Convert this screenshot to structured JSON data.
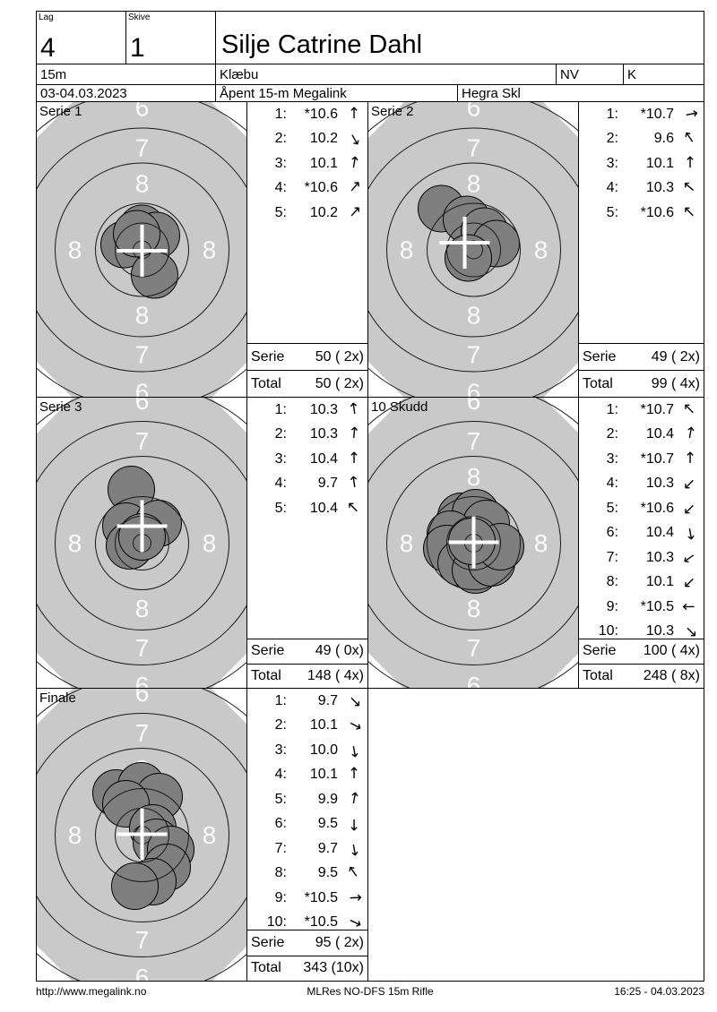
{
  "header": {
    "lag_label": "Lag",
    "lag_value": "4",
    "skive_label": "Skive",
    "skive_value": "1",
    "shooter_name": "Silje Catrine Dahl",
    "distance": "15m",
    "club": "Klæbu",
    "class_nv": "NV",
    "class_k": "K",
    "date": "03-04.03.2023",
    "event": "Åpent 15-m Megalink",
    "arena": "Hegra Skl"
  },
  "footer": {
    "url": "http://www.megalink.no",
    "program": "MLRes NO-DFS 15m Rifle",
    "printed": "16:25 - 04.03.2023"
  },
  "colors": {
    "target_bg": "#c9c9c9",
    "shot_fill": "#7f7f7f",
    "ring_line": "#1a1a1a",
    "ring_text": "#fafafa",
    "cross": "#ffffff"
  },
  "ring_numbers": [
    "6",
    "7",
    "8",
    "8",
    "8",
    "8",
    "7",
    "6"
  ],
  "series": [
    {
      "name": "Serie 1",
      "shots": [
        {
          "n": "1:",
          "v": "*10.6",
          "angle": 0
        },
        {
          "n": "2:",
          "v": "10.2",
          "angle": 150
        },
        {
          "n": "3:",
          "v": "10.1",
          "angle": 10
        },
        {
          "n": "4:",
          "v": "*10.6",
          "angle": 40
        },
        {
          "n": "5:",
          "v": "10.2",
          "angle": 42
        }
      ],
      "serie_label": "Serie",
      "serie_value": "50 ( 2x)",
      "total_label": "Total",
      "total_value": "50 ( 2x)",
      "target": {
        "cross": [
          0,
          1
        ],
        "holes": [
          [
            0,
            -24
          ],
          [
            16,
            -16
          ],
          [
            -20,
            -6
          ],
          [
            14,
            28
          ],
          [
            -6,
            -18
          ]
        ]
      }
    },
    {
      "name": "Serie 2",
      "shots": [
        {
          "n": "1:",
          "v": "*10.7",
          "angle": 80
        },
        {
          "n": "2:",
          "v": "9.6",
          "angle": 325
        },
        {
          "n": "3:",
          "v": "10.1",
          "angle": 0
        },
        {
          "n": "4:",
          "v": "10.3",
          "angle": 310
        },
        {
          "n": "5:",
          "v": "*10.6",
          "angle": 315
        }
      ],
      "serie_label": "Serie",
      "serie_value": "49 ( 2x)",
      "total_label": "Total",
      "total_value": "99 ( 4x)",
      "target": {
        "cross": [
          -10,
          -8
        ],
        "holes": [
          [
            -36,
            -46
          ],
          [
            -8,
            -34
          ],
          [
            12,
            -21
          ],
          [
            25,
            -7
          ],
          [
            -6,
            9
          ]
        ]
      }
    },
    {
      "name": "Serie 3",
      "shots": [
        {
          "n": "1:",
          "v": "10.3",
          "angle": 352
        },
        {
          "n": "2:",
          "v": "10.3",
          "angle": 5
        },
        {
          "n": "3:",
          "v": "10.4",
          "angle": 0
        },
        {
          "n": "4:",
          "v": "9.7",
          "angle": 352
        },
        {
          "n": "5:",
          "v": "10.4",
          "angle": 315
        }
      ],
      "serie_label": "Serie",
      "serie_value": "49 ( 0x)",
      "total_label": "Total",
      "total_value": "148 ( 4x)",
      "target": {
        "cross": [
          0,
          -19
        ],
        "holes": [
          [
            -12,
            -60
          ],
          [
            -18,
            -19
          ],
          [
            -14,
            3
          ],
          [
            18,
            -22
          ],
          [
            0,
            -7
          ]
        ]
      }
    },
    {
      "name": "10 Skudd",
      "shots": [
        {
          "n": "1:",
          "v": "*10.7",
          "angle": 315
        },
        {
          "n": "2:",
          "v": "10.4",
          "angle": 10
        },
        {
          "n": "3:",
          "v": "*10.7",
          "angle": 0
        },
        {
          "n": "4:",
          "v": "10.3",
          "angle": 225
        },
        {
          "n": "5:",
          "v": "*10.6",
          "angle": 225
        },
        {
          "n": "6:",
          "v": "10.4",
          "angle": 170
        },
        {
          "n": "7:",
          "v": "10.3",
          "angle": 235
        },
        {
          "n": "8:",
          "v": "10.1",
          "angle": 225
        },
        {
          "n": "9:",
          "v": "*10.5",
          "angle": 270
        },
        {
          "n": "10:",
          "v": "10.3",
          "angle": 135
        }
      ],
      "serie_label": "Serie",
      "serie_value": "100 ( 4x)",
      "total_label": "Total",
      "total_value": "248 ( 8x)",
      "target": {
        "cross": [
          0,
          -1
        ],
        "holes": [
          [
            -14,
            -30
          ],
          [
            2,
            -34
          ],
          [
            14,
            -22
          ],
          [
            -26,
            -10
          ],
          [
            -30,
            6
          ],
          [
            -14,
            22
          ],
          [
            2,
            30
          ],
          [
            20,
            22
          ],
          [
            30,
            4
          ],
          [
            -2,
            -2
          ]
        ]
      }
    },
    {
      "name": "Finale",
      "shots": [
        {
          "n": "1:",
          "v": "9.7",
          "angle": 135
        },
        {
          "n": "2:",
          "v": "10.1",
          "angle": 118
        },
        {
          "n": "3:",
          "v": "10.0",
          "angle": 170
        },
        {
          "n": "4:",
          "v": "10.1",
          "angle": 0
        },
        {
          "n": "5:",
          "v": "9.9",
          "angle": 10
        },
        {
          "n": "6:",
          "v": "9.5",
          "angle": 180
        },
        {
          "n": "7:",
          "v": "9.7",
          "angle": 170
        },
        {
          "n": "8:",
          "v": "9.5",
          "angle": 325
        },
        {
          "n": "9:",
          "v": "*10.5",
          "angle": 88
        },
        {
          "n": "10:",
          "v": "*10.5",
          "angle": 115
        }
      ],
      "serie_label": "Serie",
      "serie_value": "95 ( 2x)",
      "total_label": "Total",
      "total_value": "343 (10x)",
      "target": {
        "cross": [
          0,
          -1
        ],
        "holes": [
          [
            -29,
            -47
          ],
          [
            -1,
            -55
          ],
          [
            19,
            -43
          ],
          [
            -18,
            -35
          ],
          [
            12,
            -8
          ],
          [
            16,
            8
          ],
          [
            32,
            16
          ],
          [
            28,
            36
          ],
          [
            12,
            52
          ],
          [
            -8,
            57
          ]
        ]
      }
    }
  ]
}
